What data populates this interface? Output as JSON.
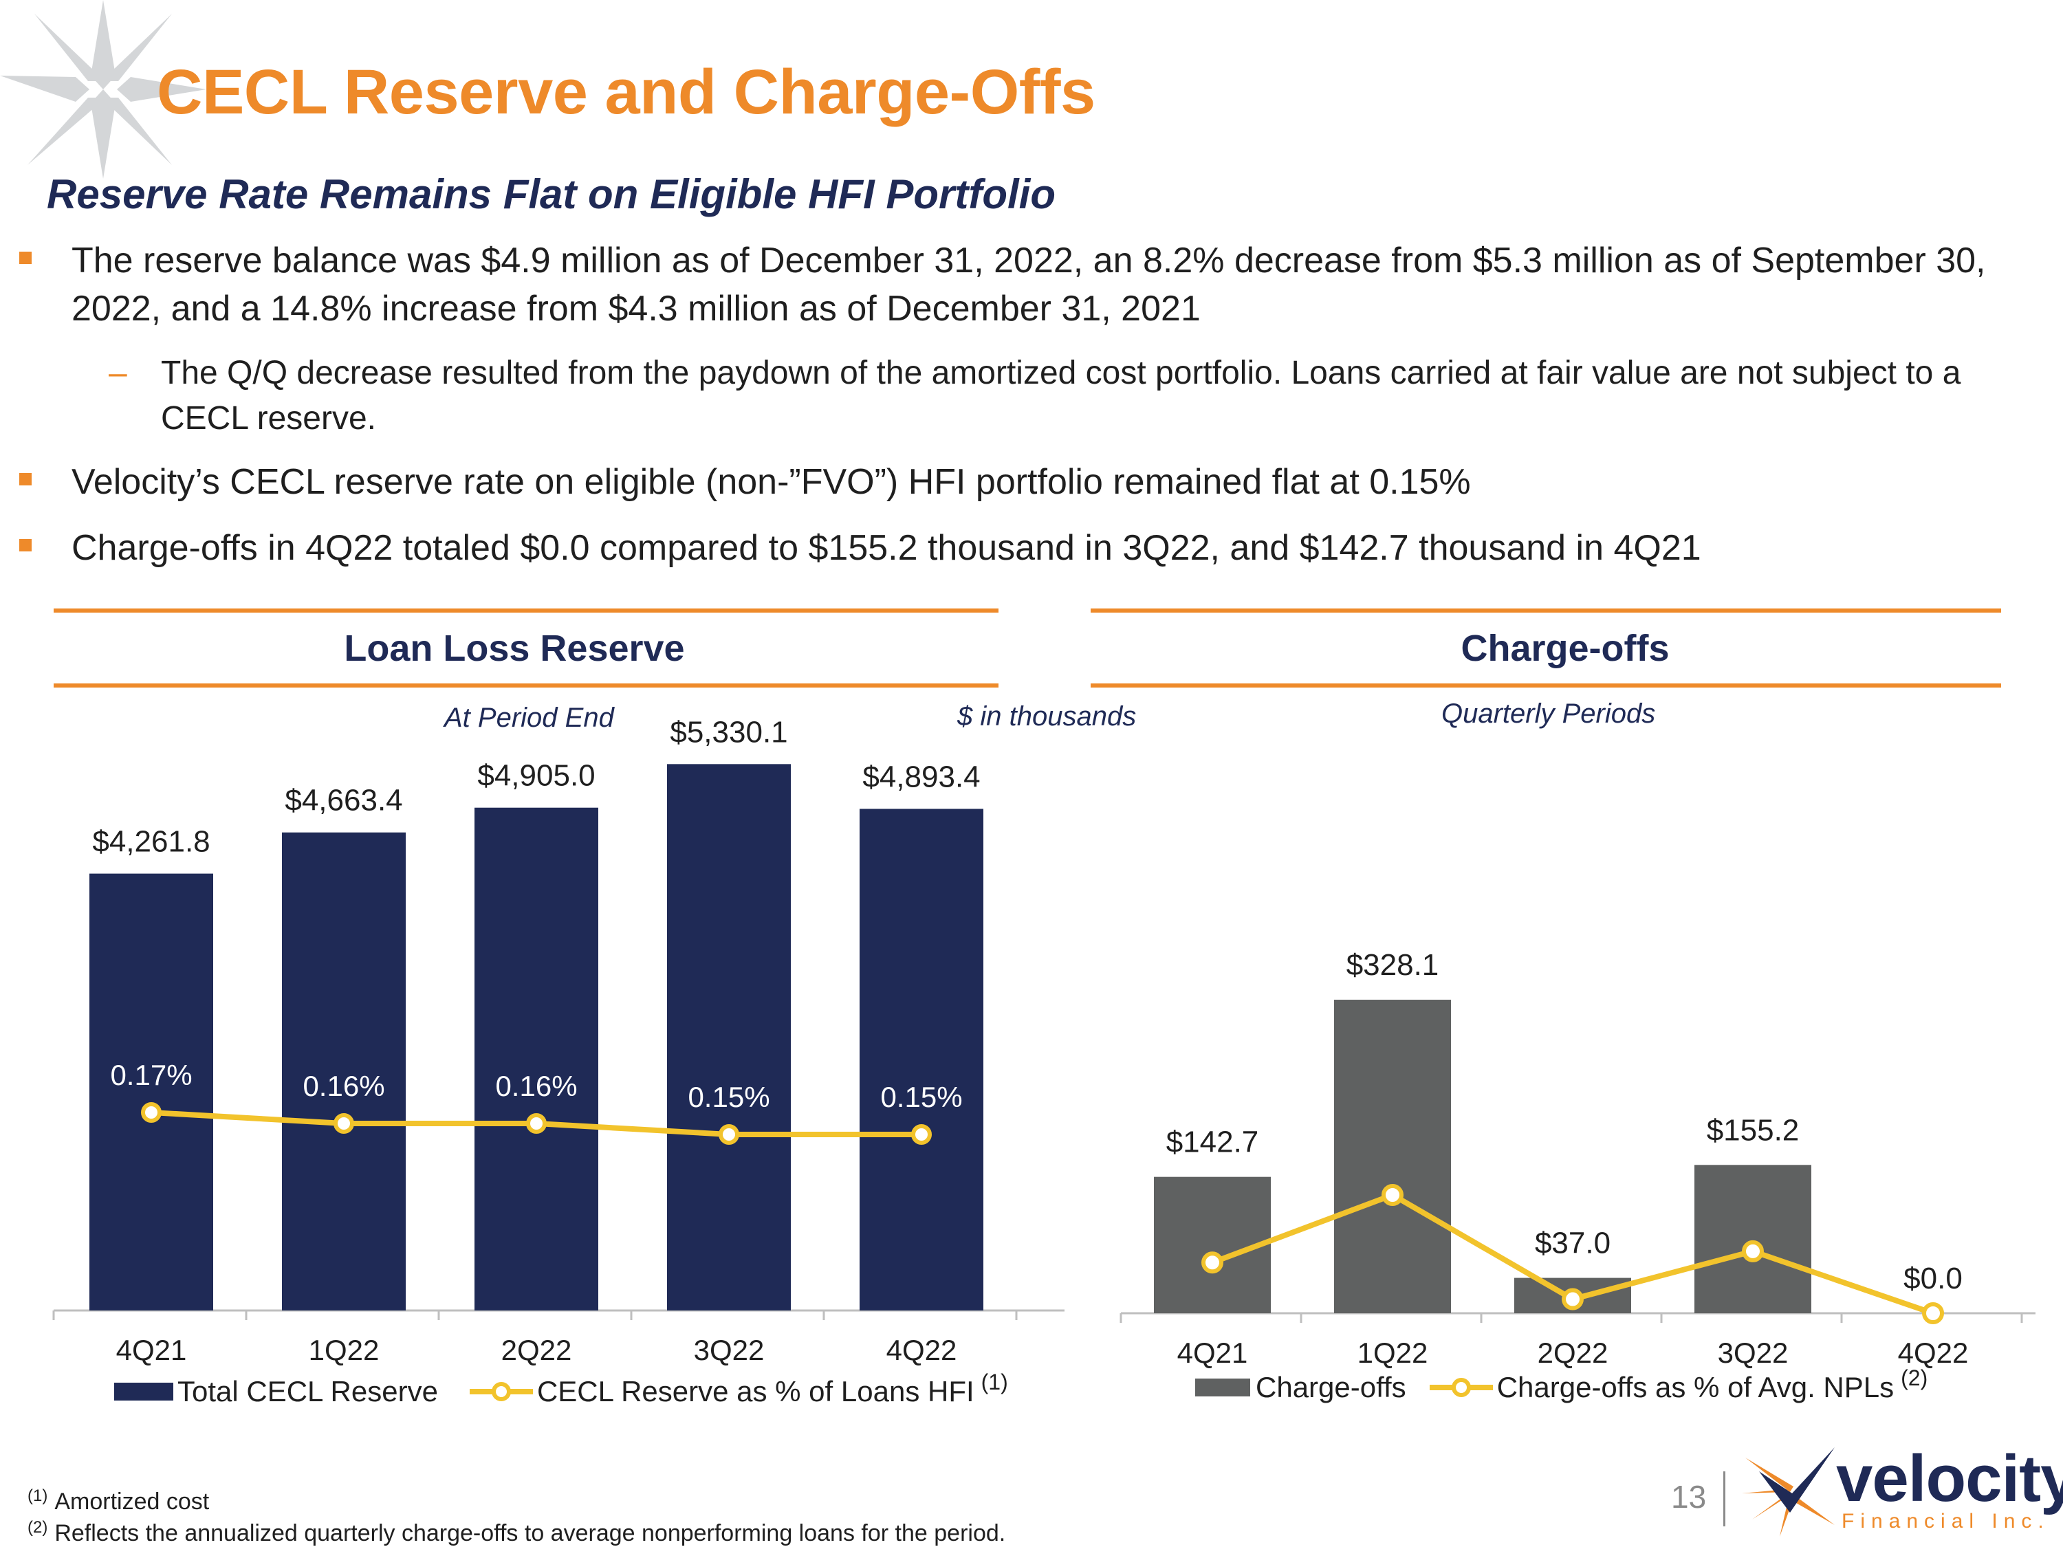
{
  "slide": {
    "title": "CECL Reserve and Charge-Offs",
    "subtitle": "Reserve Rate Remains Flat on Eligible HFI Portfolio",
    "page_number": "13"
  },
  "bullets": [
    {
      "text": "The reserve balance was $4.9 million as of December 31, 2022, an 8.2% decrease from $5.3 million as of September 30, 2022, and a 14.8% increase from $4.3 million as of December 31, 2021"
    },
    {
      "text": "The Q/Q decrease resulted from the paydown of the amortized cost portfolio. Loans carried at fair value are not subject to a CECL reserve."
    },
    {
      "text": "Velocity’s CECL reserve rate on eligible (non-”FVO”) HFI portfolio remained flat at 0.15%"
    },
    {
      "text": "Charge-offs in 4Q22 totaled $0.0 compared to $155.2 thousand in 3Q22, and $142.7 thousand in 4Q21"
    }
  ],
  "sub_marker": "–",
  "notes": {
    "period_end": "At Period End",
    "units": "$ in thousands",
    "quarterly": "Quarterly Periods"
  },
  "legend": {
    "reserve_bar": "Total CECL Reserve",
    "reserve_line": "CECL Reserve as % of Loans HFI",
    "reserve_line_ref": "(1)",
    "co_bar": "Charge-offs",
    "co_line": "Charge-offs as % of Avg. NPLs",
    "co_line_ref": "(2)"
  },
  "footnotes": [
    {
      "ref": "(1)",
      "text": "Amortized cost"
    },
    {
      "ref": "(2)",
      "text": "Reflects the annualized quarterly charge-offs to average nonperforming loans for the period."
    }
  ],
  "logo": {
    "name": "velocity",
    "tagline": "Financial Inc."
  },
  "colors": {
    "accent_orange": "#ee8a2a",
    "navy": "#1f2a56",
    "bar_gray": "#5f6161",
    "line_yellow": "#f2c32c"
  },
  "chart_data": [
    {
      "type": "bar",
      "title": "Loan Loss Reserve",
      "categories": [
        "4Q21",
        "1Q22",
        "2Q22",
        "3Q22",
        "4Q22"
      ],
      "series": [
        {
          "name": "Total CECL Reserve",
          "kind": "bar",
          "values": [
            4261.8,
            4663.4,
            4905.0,
            5330.1,
            4893.4
          ],
          "labels": [
            "$4,261.8",
            "$4,663.4",
            "$4,905.0",
            "$5,330.1",
            "$4,893.4"
          ]
        },
        {
          "name": "CECL Reserve as % of Loans HFI",
          "kind": "line",
          "values": [
            0.17,
            0.16,
            0.16,
            0.15,
            0.15
          ],
          "labels": [
            "0.17%",
            "0.16%",
            "0.16%",
            "0.15%",
            "0.15%"
          ]
        }
      ],
      "ylim": [
        0,
        5500
      ]
    },
    {
      "type": "bar",
      "title": "Charge-offs",
      "categories": [
        "4Q21",
        "1Q22",
        "2Q22",
        "3Q22",
        "4Q22"
      ],
      "series": [
        {
          "name": "Charge-offs",
          "kind": "bar",
          "values": [
            142.7,
            328.1,
            37.0,
            155.2,
            0.0
          ],
          "labels": [
            "$142.7",
            "$328.1",
            "$37.0",
            "$155.2",
            "$0.0"
          ]
        },
        {
          "name": "Charge-offs as % of Avg. NPLs",
          "kind": "line",
          "values": [
            0.18,
            0.42,
            0.05,
            0.22,
            0.0
          ]
        }
      ],
      "ylim": [
        0,
        600
      ]
    }
  ]
}
